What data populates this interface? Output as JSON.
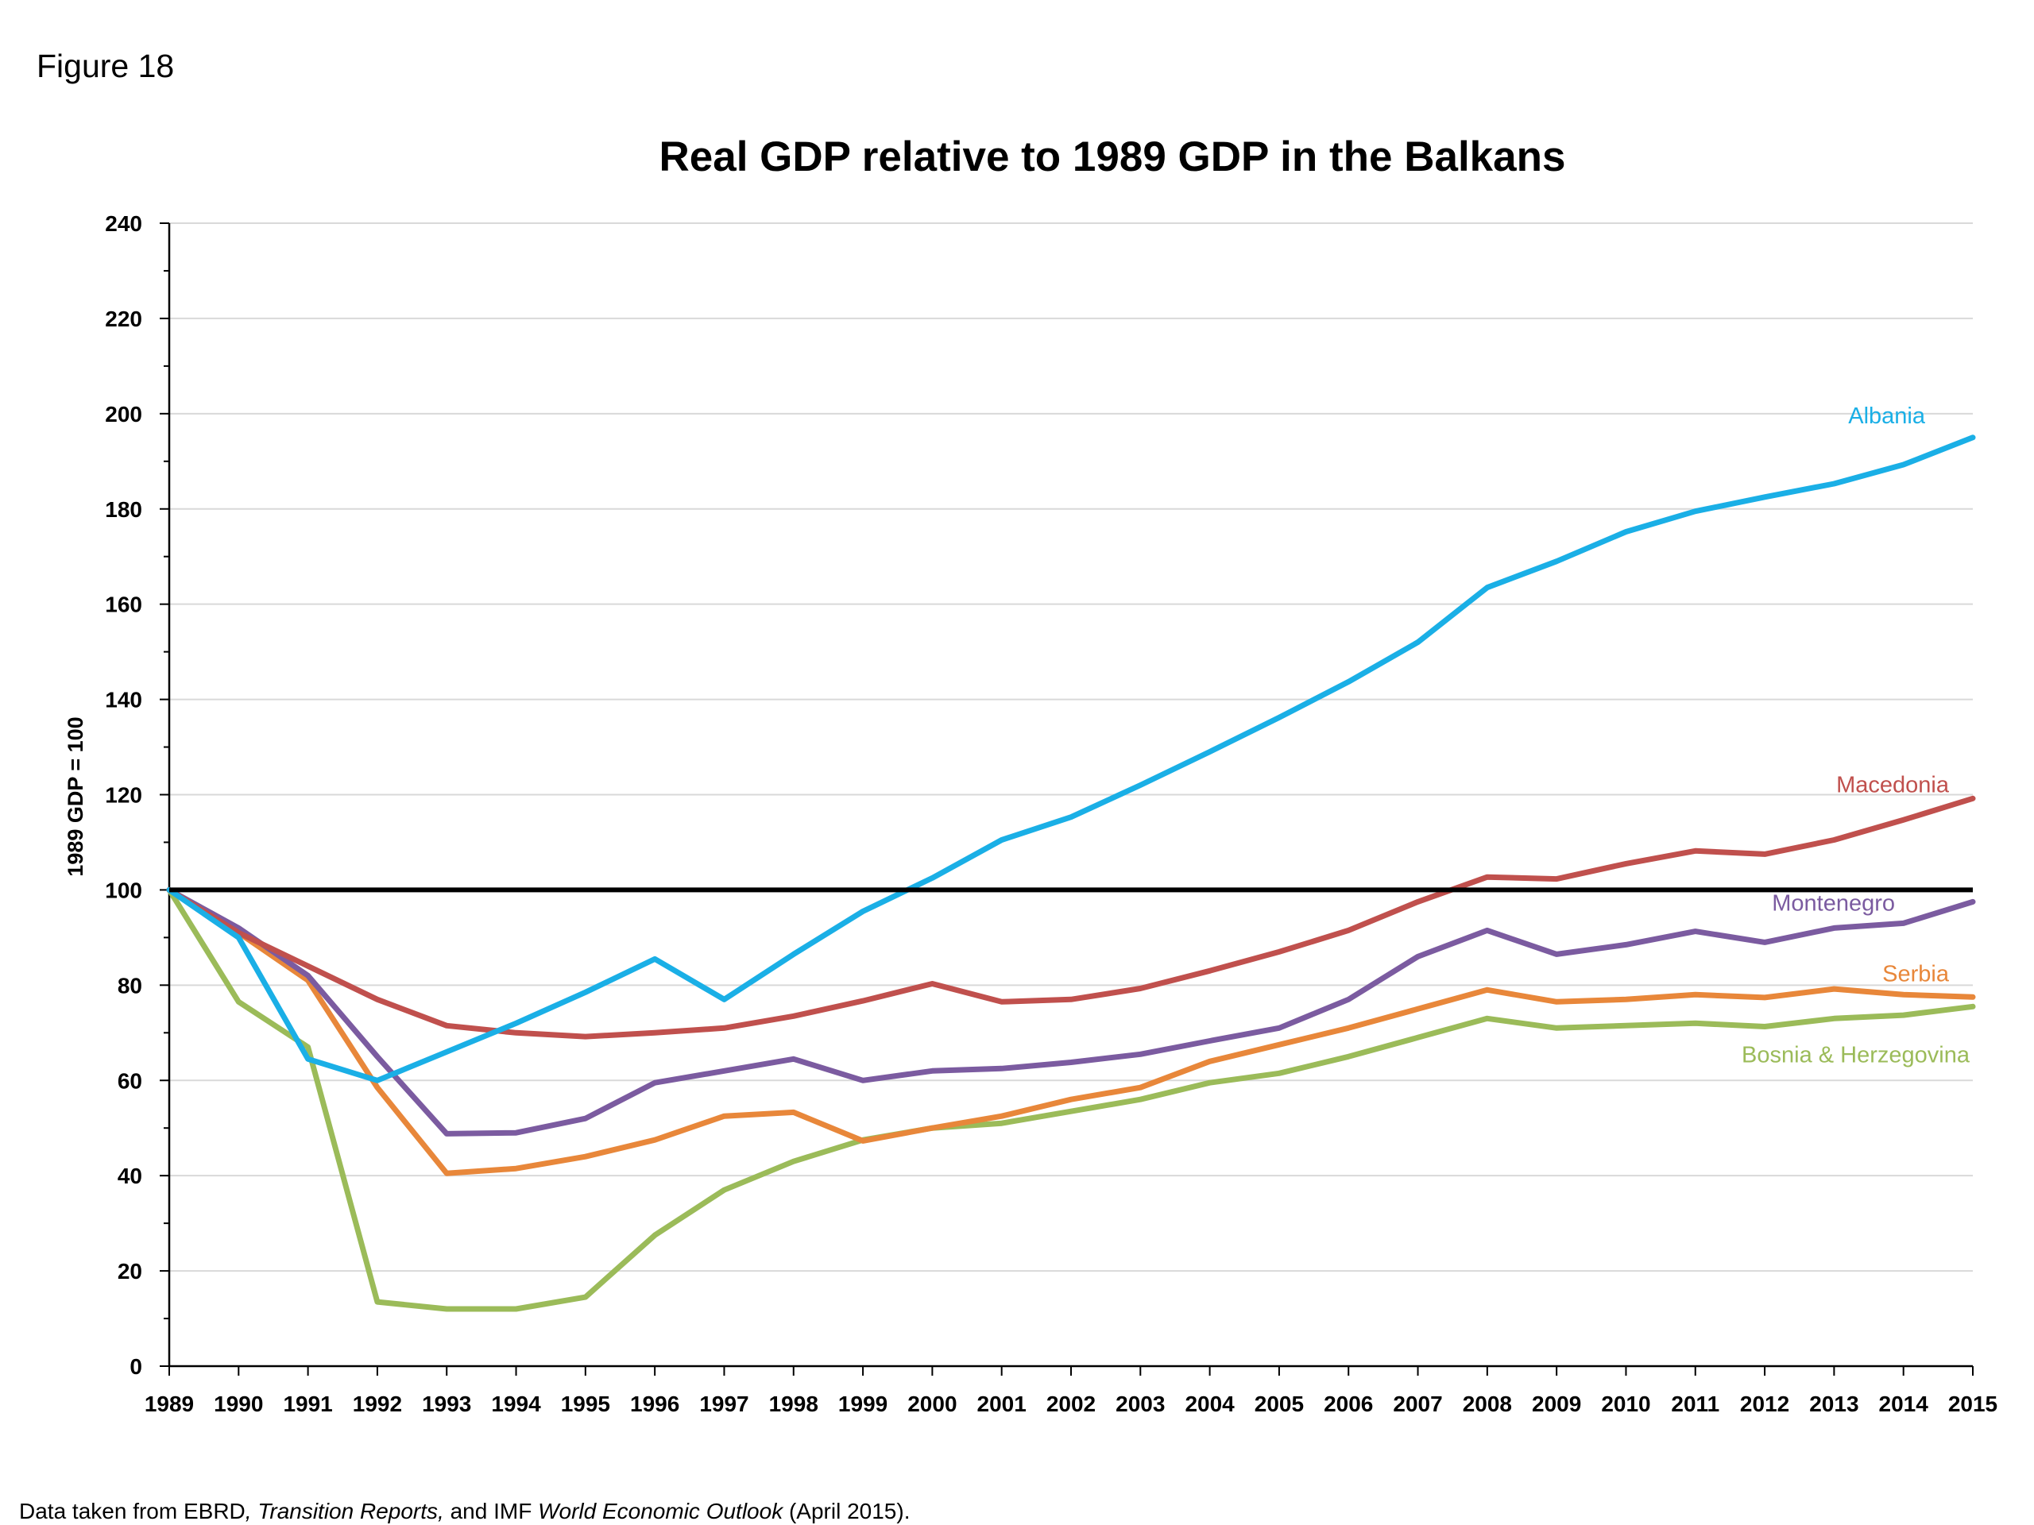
{
  "figure_label": "Figure 18",
  "source_note": {
    "part1": "Data taken from EBRD",
    "part2": ", Transition Reports,",
    "part3": " and IMF ",
    "part4": "World Economic Outlook",
    "part5": " (April 2015)."
  },
  "chart_data": {
    "type": "line",
    "title": "Real GDP relative to 1989 GDP in the Balkans",
    "xlabel": "",
    "ylabel": "1989 GDP = 100",
    "ylim": [
      0,
      240
    ],
    "yticks": [
      0,
      20,
      40,
      60,
      80,
      100,
      120,
      140,
      160,
      180,
      200,
      220,
      240
    ],
    "grid": true,
    "reference_line": {
      "y": 100,
      "color": "#000000"
    },
    "x": [
      "1989",
      "1990",
      "1991",
      "1992",
      "1993",
      "1994",
      "1995",
      "1996",
      "1997",
      "1998",
      "1999",
      "2000",
      "2001",
      "2002",
      "2003",
      "2004",
      "2005",
      "2006",
      "2007",
      "2008",
      "2009",
      "2010",
      "2011",
      "2012",
      "2013",
      "2014",
      "2015"
    ],
    "series": [
      {
        "name": "Bosnia & Herzegovina",
        "color": "#9BBB59",
        "values": [
          100,
          76.5,
          67,
          13.5,
          12,
          12,
          14.5,
          27.5,
          37,
          43,
          47.5,
          50,
          51,
          53.5,
          56,
          59.5,
          61.5,
          65,
          69,
          73,
          71,
          71.5,
          72,
          71.3,
          73,
          73.7,
          75.5
        ]
      },
      {
        "name": "Serbia",
        "color": "#E8873A",
        "values": [
          100,
          91,
          81,
          58.5,
          40.5,
          41.5,
          44,
          47.5,
          52.5,
          53.3,
          47.3,
          50,
          52.5,
          56,
          58.5,
          64,
          67.5,
          71,
          75,
          79,
          76.5,
          77,
          78,
          77.4,
          79.2,
          78,
          77.5
        ]
      },
      {
        "name": "Montenegro",
        "color": "#7B5BA0",
        "values": [
          100,
          92,
          82,
          65,
          48.8,
          49,
          52,
          59.5,
          62,
          64.5,
          60,
          62,
          62.5,
          63.8,
          65.5,
          68.3,
          71,
          77,
          86,
          91.5,
          86.5,
          88.5,
          91.3,
          89,
          92,
          93,
          97.5
        ]
      },
      {
        "name": "Macedonia",
        "color": "#C0504D",
        "values": [
          100,
          91,
          84,
          77,
          71.5,
          70,
          69.2,
          70,
          71,
          73.5,
          76.7,
          80.3,
          76.5,
          77,
          79.3,
          83,
          87,
          91.5,
          97.5,
          102.7,
          102.3,
          105.5,
          108.2,
          107.5,
          110.5,
          114.7,
          119.2
        ]
      },
      {
        "name": "Albania",
        "color": "#1AAFE6",
        "values": [
          100,
          90,
          64.5,
          60,
          66,
          72,
          78.5,
          85.5,
          77,
          86.5,
          95.5,
          102.5,
          110.5,
          115.3,
          122,
          129,
          136.2,
          143.7,
          152,
          163.5,
          169,
          175.2,
          179.5,
          182.5,
          185.3,
          189.3,
          195
        ]
      }
    ]
  }
}
